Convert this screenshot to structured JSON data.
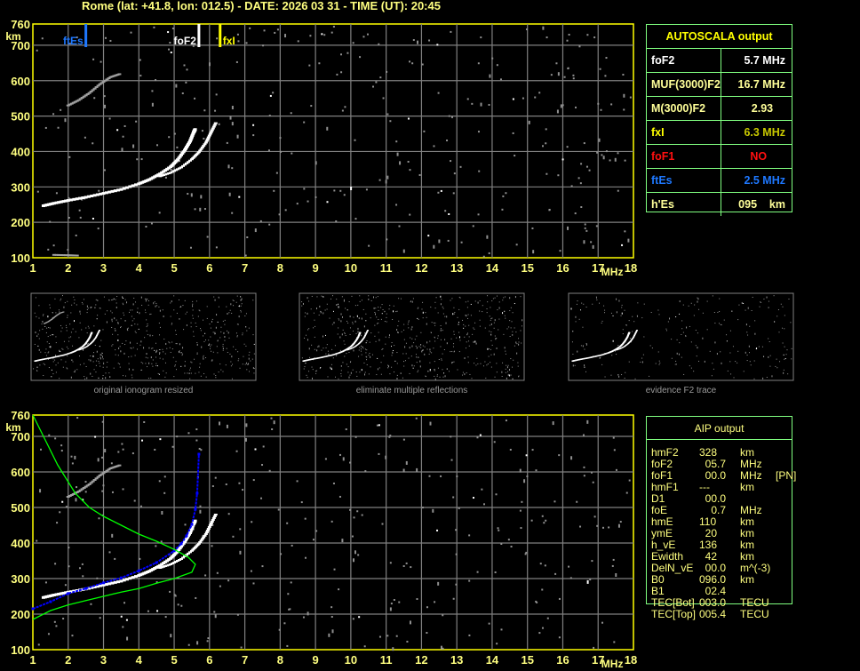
{
  "header": {
    "title": "Rome (lat: +41.8, lon: 012.5) - DATE: 2026 03 31 - TIME (UT): 20:45"
  },
  "colors": {
    "axis": "#ffff00",
    "grid": "#808080",
    "noise": "#909090",
    "trace": "#ffffff",
    "profile": "#00ff00",
    "aip_trace": "#0000ff",
    "ftEs": "#1e78ff",
    "foF2": "#ffffff",
    "fxI": "#ffff00",
    "table_border": "#80ff80"
  },
  "autoscala": {
    "title": "AUTOSCALA output",
    "rows": [
      {
        "label": "foF2",
        "value": "5.7 MHz",
        "label_color": "#ffffff",
        "value_color": "#ffffff"
      },
      {
        "label": "MUF(3000)F2",
        "value": "16.7 MHz",
        "label_color": "#ffff99",
        "value_color": "#ffff99"
      },
      {
        "label": "M(3000)F2",
        "value": "2.93    ",
        "label_color": "#ffff99",
        "value_color": "#ffff99"
      },
      {
        "label": "fxI",
        "value": "6.3 MHz",
        "label_color": "#ffff00",
        "value_color": "#c8c800"
      },
      {
        "label": "foF1",
        "value": "NO      ",
        "label_color": "#ff1010",
        "value_color": "#ff1010"
      },
      {
        "label": "ftEs",
        "value": "2.5 MHz",
        "label_color": "#1e78ff",
        "value_color": "#1e78ff"
      },
      {
        "label": "h'Es",
        "value": "095    km",
        "label_color": "#ffff99",
        "value_color": "#ffff99"
      }
    ]
  },
  "aip": {
    "title": "AIP output",
    "rows": [
      {
        "name": "hmF2",
        "value": "328",
        "unit": "km",
        "extra": ""
      },
      {
        "name": "foF2",
        "value": "  05.7",
        "unit": "MHz",
        "extra": ""
      },
      {
        "name": "foF1",
        "value": "  00.0",
        "unit": "MHz",
        "extra": "[PN]"
      },
      {
        "name": "hmF1",
        "value": "---",
        "unit": "km",
        "extra": ""
      },
      {
        "name": "D1",
        "value": "  00.0",
        "unit": "",
        "extra": ""
      },
      {
        "name": "foE",
        "value": "    0.7",
        "unit": "MHz",
        "extra": ""
      },
      {
        "name": "hmE",
        "value": "110",
        "unit": "km",
        "extra": ""
      },
      {
        "name": "ymE",
        "value": "  20",
        "unit": "km",
        "extra": ""
      },
      {
        "name": "h_vE",
        "value": "136",
        "unit": "km",
        "extra": ""
      },
      {
        "name": "Ewidth",
        "value": "  42",
        "unit": "km",
        "extra": ""
      },
      {
        "name": "DelN_vE",
        "value": "  00.0",
        "unit": "m^(-3)",
        "extra": ""
      },
      {
        "name": "B0",
        "value": "096.0",
        "unit": "km",
        "extra": ""
      },
      {
        "name": "B1",
        "value": "  02.4",
        "unit": "",
        "extra": ""
      },
      {
        "name": "TEC[Bot]",
        "value": "003.0",
        "unit": "TECU",
        "extra": ""
      },
      {
        "name": "TEC[Top]",
        "value": "005.4",
        "unit": "TECU",
        "extra": ""
      }
    ]
  },
  "thumbnails": [
    {
      "caption": "original ionogram resized"
    },
    {
      "caption": "eliminate multiple reflections"
    },
    {
      "caption": "evidence F2 trace"
    }
  ],
  "chart_data": [
    {
      "type": "scatter",
      "title": "",
      "xlabel": "MHz",
      "ylabel": "km",
      "xlim": [
        1,
        18
      ],
      "ylim": [
        100,
        760
      ],
      "x_ticks": [
        1,
        2,
        3,
        4,
        5,
        6,
        7,
        8,
        9,
        10,
        11,
        12,
        13,
        14,
        15,
        16,
        17,
        18
      ],
      "y_ticks": [
        760,
        700,
        600,
        500,
        400,
        300,
        200,
        100
      ],
      "grid": true,
      "markers": [
        {
          "label": "ftEs",
          "freq": 2.5
        },
        {
          "label": "foF2",
          "freq": 5.7
        },
        {
          "label": "fxI",
          "freq": 6.3
        }
      ],
      "series": [
        {
          "kind": "o-trace",
          "points": [
            [
              1.3,
              248
            ],
            [
              1.6,
              255
            ],
            [
              2,
              263
            ],
            [
              2.5,
              272
            ],
            [
              3,
              283
            ],
            [
              3.5,
              294
            ],
            [
              4,
              310
            ],
            [
              4.3,
              322
            ],
            [
              4.6,
              338
            ],
            [
              4.9,
              358
            ],
            [
              5.1,
              378
            ],
            [
              5.3,
              405
            ],
            [
              5.45,
              430
            ],
            [
              5.55,
              455
            ],
            [
              5.6,
              465
            ]
          ]
        },
        {
          "kind": "x-trace",
          "points": [
            [
              4.6,
              330
            ],
            [
              4.9,
              340
            ],
            [
              5.2,
              355
            ],
            [
              5.5,
              378
            ],
            [
              5.7,
              398
            ],
            [
              5.9,
              425
            ],
            [
              6.05,
              455
            ],
            [
              6.2,
              485
            ]
          ]
        },
        {
          "kind": "multiple-reflection",
          "points": [
            [
              2,
              530
            ],
            [
              2.3,
              545
            ],
            [
              2.6,
              565
            ],
            [
              2.9,
              590
            ],
            [
              3.2,
              610
            ],
            [
              3.5,
              620
            ]
          ]
        },
        {
          "kind": "es-trace",
          "points": [
            [
              1.6,
              108
            ],
            [
              2,
              107
            ],
            [
              2.3,
              106
            ]
          ]
        }
      ]
    },
    {
      "type": "line",
      "title": "",
      "xlabel": "MHz",
      "ylabel": "km",
      "xlim": [
        1,
        18
      ],
      "ylim": [
        100,
        760
      ],
      "x_ticks": [
        1,
        2,
        3,
        4,
        5,
        6,
        7,
        8,
        9,
        10,
        11,
        12,
        13,
        14,
        15,
        16,
        17,
        18
      ],
      "y_ticks": [
        760,
        700,
        600,
        500,
        400,
        300,
        200,
        100
      ],
      "grid": true,
      "series": [
        {
          "kind": "o-trace",
          "points": [
            [
              1.3,
              248
            ],
            [
              1.6,
              255
            ],
            [
              2,
              263
            ],
            [
              2.5,
              272
            ],
            [
              3,
              283
            ],
            [
              3.5,
              294
            ],
            [
              4,
              310
            ],
            [
              4.3,
              322
            ],
            [
              4.6,
              338
            ],
            [
              4.9,
              358
            ],
            [
              5.1,
              378
            ],
            [
              5.3,
              405
            ],
            [
              5.45,
              430
            ],
            [
              5.55,
              455
            ],
            [
              5.6,
              465
            ]
          ]
        },
        {
          "kind": "x-trace",
          "points": [
            [
              4.6,
              330
            ],
            [
              4.9,
              340
            ],
            [
              5.2,
              355
            ],
            [
              5.5,
              378
            ],
            [
              5.7,
              398
            ],
            [
              5.9,
              425
            ],
            [
              6.05,
              455
            ],
            [
              6.2,
              485
            ]
          ]
        },
        {
          "kind": "multiple-reflection",
          "points": [
            [
              2,
              530
            ],
            [
              2.3,
              545
            ],
            [
              2.6,
              565
            ],
            [
              2.9,
              590
            ],
            [
              3.2,
              610
            ],
            [
              3.5,
              620
            ]
          ]
        },
        {
          "kind": "aip-fitted-trace",
          "points": [
            [
              1,
              215
            ],
            [
              1.5,
              235
            ],
            [
              2,
              258
            ],
            [
              2.5,
              272
            ],
            [
              3,
              288
            ],
            [
              3.5,
              302
            ],
            [
              4,
              322
            ],
            [
              4.5,
              345
            ],
            [
              5,
              378
            ],
            [
              5.2,
              398
            ],
            [
              5.35,
              420
            ],
            [
              5.5,
              452
            ],
            [
              5.6,
              495
            ],
            [
              5.65,
              540
            ],
            [
              5.7,
              650
            ]
          ]
        },
        {
          "kind": "electron-density-profile",
          "points": [
            [
              1,
              760
            ],
            [
              1.3,
              700
            ],
            [
              1.7,
              620
            ],
            [
              2.2,
              540
            ],
            [
              2.6,
              500
            ],
            [
              3,
              475
            ],
            [
              3.5,
              450
            ],
            [
              4,
              425
            ],
            [
              4.5,
              405
            ],
            [
              5,
              382
            ],
            [
              5.4,
              360
            ],
            [
              5.6,
              340
            ],
            [
              5.5,
              318
            ],
            [
              5,
              300
            ],
            [
              4.5,
              287
            ],
            [
              4,
              272
            ],
            [
              3.5,
              262
            ],
            [
              3,
              250
            ],
            [
              2.5,
              238
            ],
            [
              2,
              226
            ],
            [
              1.5,
              210
            ],
            [
              1,
              185
            ]
          ]
        }
      ]
    }
  ]
}
